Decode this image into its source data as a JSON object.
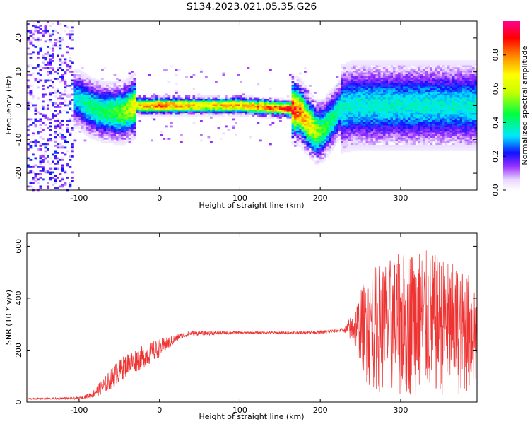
{
  "title": "S134.2023.021.05.35.G26",
  "colors": {
    "snr_line": "#ee3333",
    "axis": "#000000",
    "background": "#ffffff"
  },
  "chart_data": [
    {
      "type": "heatmap",
      "name": "spectrogram",
      "xlabel": "Height of straight line (km)",
      "ylabel": "Frequency (Hz)",
      "xlim": [
        -165,
        395
      ],
      "ylim": [
        -25,
        25
      ],
      "xticks": [
        -100,
        0,
        100,
        200,
        300
      ],
      "yticks": [
        -20,
        -10,
        0,
        10,
        20
      ],
      "colorbar": {
        "label": "Normalized spectral amplitude",
        "ticks": [
          "0.0",
          "0.2",
          "0.4",
          "0.6",
          "0.8"
        ],
        "range": [
          0,
          1
        ]
      },
      "ridge": {
        "description_points": [
          [
            -110,
            2
          ],
          [
            -100,
            2
          ],
          [
            -90,
            0
          ],
          [
            -70,
            -2
          ],
          [
            -55,
            -2
          ],
          [
            -45,
            -2
          ],
          [
            -38,
            -1
          ],
          [
            -30,
            0
          ],
          [
            -20,
            0
          ],
          [
            0,
            0
          ],
          [
            50,
            0
          ],
          [
            100,
            0
          ],
          [
            165,
            -1
          ],
          [
            175,
            -2
          ],
          [
            185,
            -5
          ],
          [
            195,
            -8
          ],
          [
            205,
            -7
          ],
          [
            215,
            -4
          ],
          [
            225,
            -1
          ],
          [
            240,
            0
          ],
          [
            260,
            0
          ],
          [
            300,
            0
          ],
          [
            350,
            0
          ],
          [
            395,
            0
          ]
        ],
        "peak_amplitude": [
          [
            -110,
            0.3
          ],
          [
            -90,
            0.4
          ],
          [
            -60,
            0.45
          ],
          [
            -40,
            0.55
          ],
          [
            -25,
            0.75
          ],
          [
            0,
            0.85
          ],
          [
            50,
            0.7
          ],
          [
            100,
            0.75
          ],
          [
            150,
            0.85
          ],
          [
            165,
            0.9
          ],
          [
            185,
            0.7
          ],
          [
            200,
            0.5
          ],
          [
            230,
            0.35
          ],
          [
            300,
            0.35
          ],
          [
            395,
            0.35
          ]
        ]
      }
    },
    {
      "type": "line",
      "name": "snr",
      "xlabel": "Height of straight line (km)",
      "ylabel": "SNR (10 * v/v)",
      "xlim": [
        -165,
        395
      ],
      "ylim": [
        0,
        650
      ],
      "xticks": [
        -100,
        0,
        100,
        200,
        300
      ],
      "yticks": [
        0,
        200,
        400,
        600
      ],
      "envelope": [
        [
          -165,
          10,
          15
        ],
        [
          -100,
          10,
          20
        ],
        [
          -85,
          15,
          40
        ],
        [
          -70,
          30,
          90
        ],
        [
          -55,
          60,
          150
        ],
        [
          -40,
          100,
          190
        ],
        [
          -20,
          130,
          220
        ],
        [
          -5,
          160,
          240
        ],
        [
          10,
          200,
          250
        ],
        [
          25,
          240,
          265
        ],
        [
          40,
          255,
          275
        ],
        [
          100,
          262,
          272
        ],
        [
          150,
          262,
          272
        ],
        [
          200,
          262,
          275
        ],
        [
          230,
          270,
          285
        ],
        [
          245,
          200,
          380
        ],
        [
          260,
          50,
          520
        ],
        [
          290,
          20,
          560
        ],
        [
          320,
          20,
          600
        ],
        [
          350,
          20,
          560
        ],
        [
          395,
          30,
          480
        ]
      ]
    }
  ]
}
